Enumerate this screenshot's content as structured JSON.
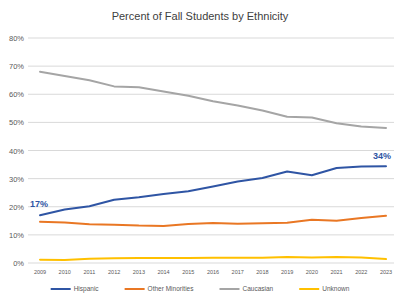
{
  "chart_data": {
    "type": "line",
    "title": "Percent of Fall Students by Ethnicity",
    "categories": [
      "2009",
      "2010",
      "2011",
      "2012",
      "2013",
      "2014",
      "2015",
      "2016",
      "2017",
      "2018",
      "2019",
      "2020",
      "2021",
      "2022",
      "2023"
    ],
    "series": [
      {
        "name": "Hispanic",
        "color": "#2f55a4",
        "values": [
          17,
          19,
          20.2,
          22.5,
          23.4,
          24.5,
          25.5,
          27.2,
          29,
          30.2,
          32.5,
          31.2,
          33.8,
          34.3,
          34.4
        ]
      },
      {
        "name": "Other Minorities",
        "color": "#e97724",
        "values": [
          14.7,
          14.4,
          13.8,
          13.6,
          13.3,
          13.2,
          13.9,
          14.2,
          14,
          14.1,
          14.3,
          15.4,
          15,
          16,
          16.8
        ]
      },
      {
        "name": "Caucasian",
        "color": "#a5a5a5",
        "values": [
          68,
          66.5,
          65,
          62.8,
          62.5,
          61,
          59.5,
          57.5,
          56,
          54.2,
          52,
          51.7,
          49.7,
          48.5,
          48
        ]
      },
      {
        "name": "Unknown",
        "color": "#ffc000",
        "values": [
          1.2,
          1.1,
          1.5,
          1.7,
          1.8,
          1.8,
          1.8,
          1.9,
          1.9,
          1.9,
          2.1,
          2,
          2.1,
          2,
          1.4
        ]
      }
    ],
    "ylim": [
      0,
      80
    ],
    "yticks": [
      {
        "value": 0,
        "label": "0%"
      },
      {
        "value": 10,
        "label": "10%"
      },
      {
        "value": 20,
        "label": "20%"
      },
      {
        "value": 30,
        "label": "30%"
      },
      {
        "value": 40,
        "label": "40%"
      },
      {
        "value": 50,
        "label": "50%"
      },
      {
        "value": 60,
        "label": "60%"
      },
      {
        "value": 70,
        "label": "70%"
      },
      {
        "value": 80,
        "label": "80%"
      }
    ],
    "grid": true,
    "legend": "bottom",
    "annotations": [
      {
        "text": "17%",
        "x": "2009",
        "y": 17,
        "color": "#2f55a4"
      },
      {
        "text": "34%",
        "x": "2023",
        "y": 34,
        "color": "#2f55a4"
      }
    ]
  }
}
